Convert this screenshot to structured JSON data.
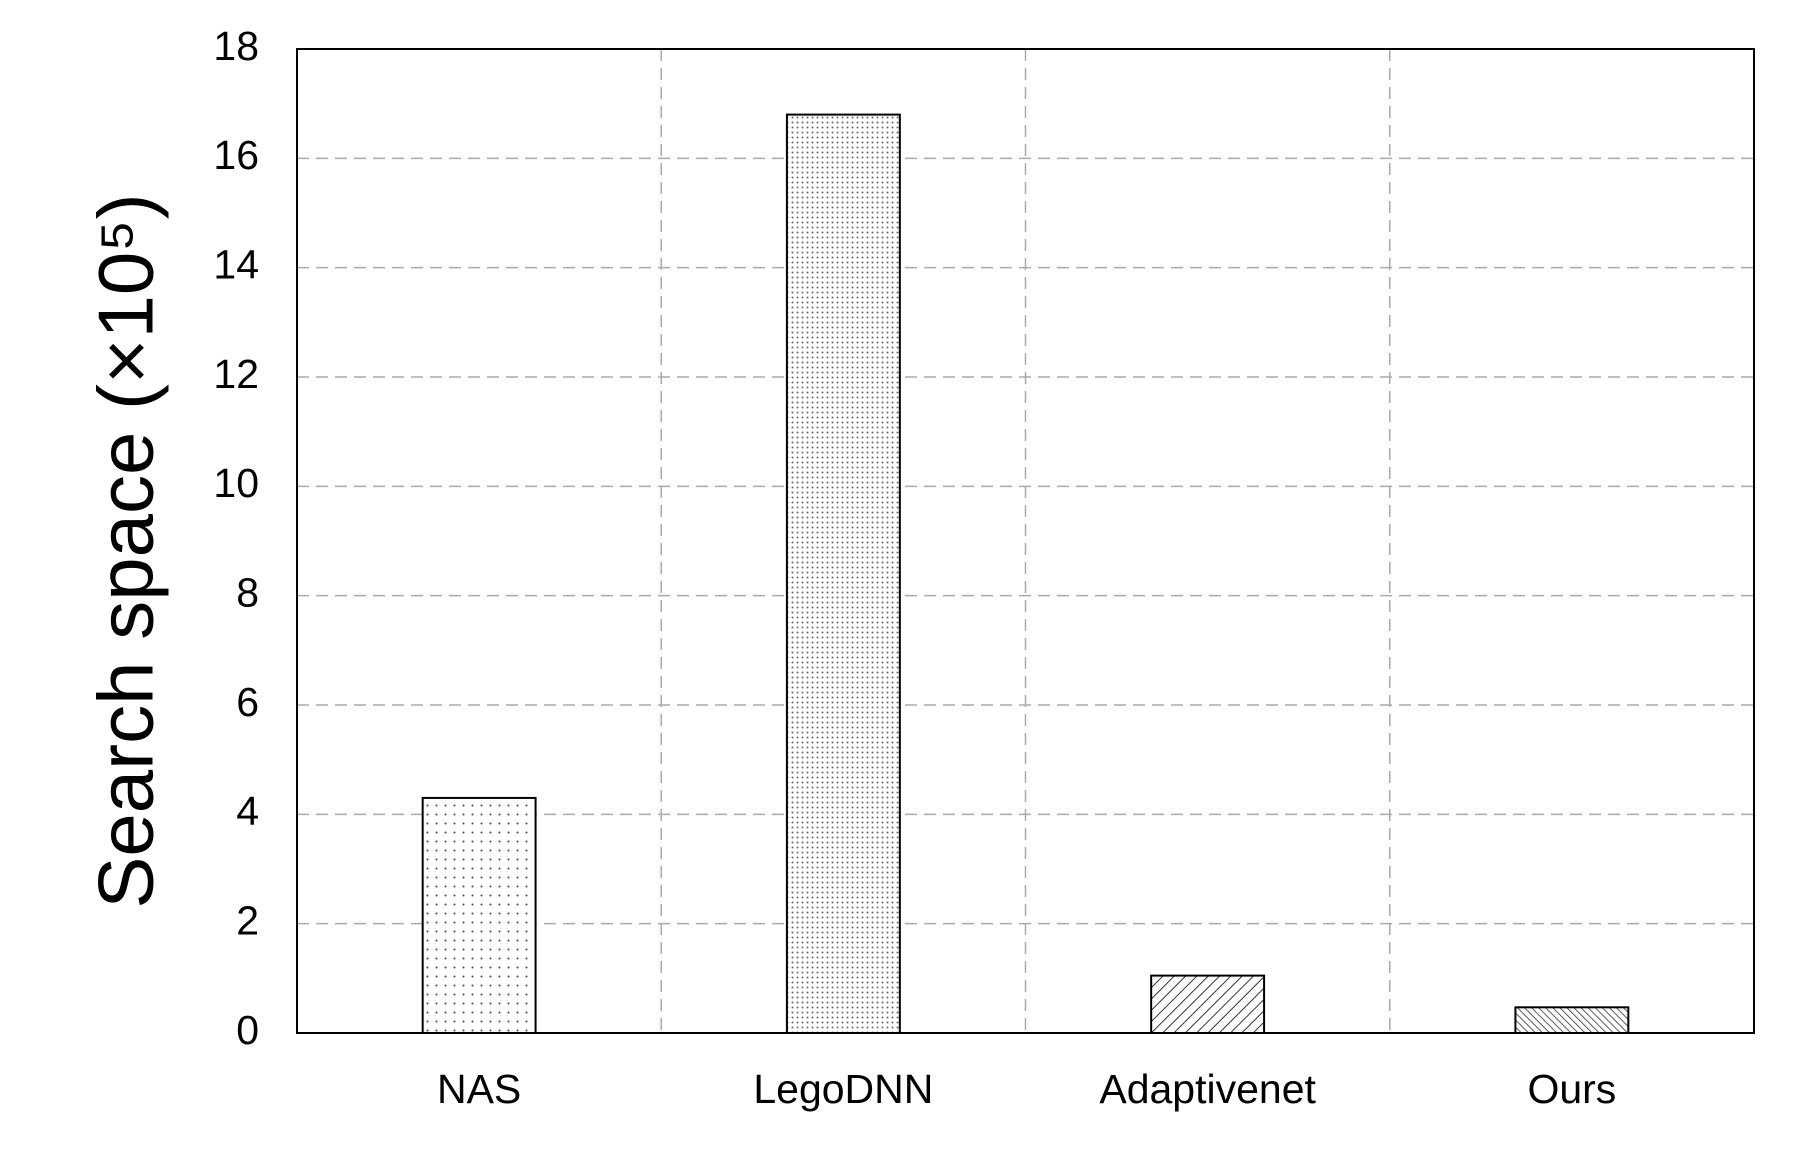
{
  "chart_data": {
    "type": "bar",
    "y_label": "Search space (×10⁵)",
    "categories": [
      "NAS",
      "LegoDNN",
      "Adaptivenet",
      "Ours"
    ],
    "values": [
      4.3,
      16.8,
      1.05,
      0.47
    ],
    "hatch": [
      "sparse-dots",
      "dense-dots",
      "diagonal",
      "dense-diagonal"
    ],
    "ylim": [
      0,
      18
    ],
    "yticks": [
      0,
      2,
      4,
      6,
      8,
      10,
      12,
      14,
      16,
      18
    ],
    "grid": true
  }
}
